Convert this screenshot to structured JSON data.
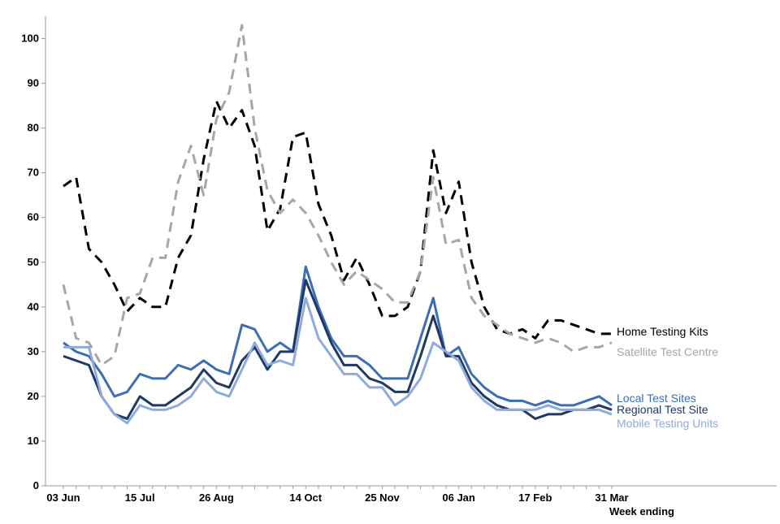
{
  "chart_data": {
    "type": "line",
    "title": "",
    "xlabel": "Week ending",
    "ylabel": "",
    "ylim": [
      0,
      105
    ],
    "yticks": [
      0,
      10,
      20,
      30,
      40,
      50,
      60,
      70,
      80,
      90,
      100
    ],
    "x_count": 44,
    "xtick_labels": [
      {
        "index": 0,
        "label": "03 Jun"
      },
      {
        "index": 6,
        "label": "15 Jul"
      },
      {
        "index": 12,
        "label": "26 Aug"
      },
      {
        "index": 19,
        "label": "14 Oct"
      },
      {
        "index": 25,
        "label": "25 Nov"
      },
      {
        "index": 31,
        "label": "06 Jan"
      },
      {
        "index": 37,
        "label": "17 Feb"
      },
      {
        "index": 43,
        "label": "31 Mar"
      }
    ],
    "series": [
      {
        "name": "Home Testing Kits",
        "color": "#000000",
        "dash": "dashed",
        "values": [
          67,
          69,
          53,
          50,
          45,
          39,
          42,
          40,
          40,
          51,
          56,
          73,
          86,
          80,
          84,
          76,
          57,
          62,
          78,
          79,
          63,
          56,
          46,
          51,
          45,
          38,
          38,
          40,
          48,
          75,
          61,
          68,
          50,
          40,
          35,
          34,
          35,
          33,
          37,
          37,
          36,
          35,
          34,
          34
        ]
      },
      {
        "name": "Satellite Test Centre",
        "color": "#a6a6a6",
        "dash": "dashed",
        "values": [
          45,
          33,
          32,
          27,
          29,
          42,
          43,
          51,
          51,
          68,
          76,
          65,
          82,
          88,
          103,
          80,
          66,
          61,
          64,
          61,
          56,
          50,
          45,
          48,
          46,
          44,
          41,
          41,
          48,
          69,
          54,
          55,
          42,
          38,
          36,
          34,
          33,
          32,
          33,
          32,
          30,
          31,
          31,
          32
        ]
      },
      {
        "name": "Local Test Sites",
        "color": "#3c6eb4",
        "dash": "solid",
        "values": [
          32,
          30,
          29,
          25,
          20,
          21,
          25,
          24,
          24,
          27,
          26,
          28,
          26,
          25,
          36,
          35,
          30,
          32,
          30,
          49,
          40,
          33,
          29,
          29,
          27,
          24,
          24,
          24,
          33,
          42,
          29,
          31,
          25,
          22,
          20,
          19,
          19,
          18,
          19,
          18,
          18,
          19,
          20,
          18
        ]
      },
      {
        "name": "Regional Test Site",
        "color": "#1f3864",
        "dash": "solid",
        "values": [
          29,
          28,
          27,
          20,
          16,
          15,
          20,
          18,
          18,
          20,
          22,
          26,
          23,
          22,
          28,
          31,
          26,
          30,
          30,
          46,
          39,
          32,
          27,
          27,
          24,
          23,
          21,
          21,
          29,
          38,
          29,
          29,
          23,
          20,
          18,
          17,
          17,
          15,
          16,
          16,
          17,
          17,
          18,
          17
        ]
      },
      {
        "name": "Mobile Testing Units",
        "color": "#8faadc",
        "dash": "solid",
        "values": [
          31,
          31,
          31,
          20,
          16,
          14,
          18,
          17,
          17,
          18,
          20,
          24,
          21,
          20,
          26,
          32,
          27,
          28,
          27,
          42,
          33,
          29,
          25,
          25,
          22,
          22,
          18,
          20,
          24,
          32,
          30,
          28,
          22,
          19,
          17,
          17,
          17,
          17,
          18,
          17,
          17,
          17,
          17,
          16
        ]
      }
    ],
    "legend": [
      {
        "text": "Home Testing Kits",
        "color": "#000000"
      },
      {
        "text": "Satellite Test Centre",
        "color": "#a6a6a6"
      },
      {
        "text": "Local Test Sites",
        "color": "#3c6eb4"
      },
      {
        "text": "Regional Test Site",
        "color": "#1f3864"
      },
      {
        "text": "Mobile Testing Units",
        "color": "#8faadc"
      }
    ],
    "legend_placement": "right-end-of-lines",
    "grid": false
  }
}
